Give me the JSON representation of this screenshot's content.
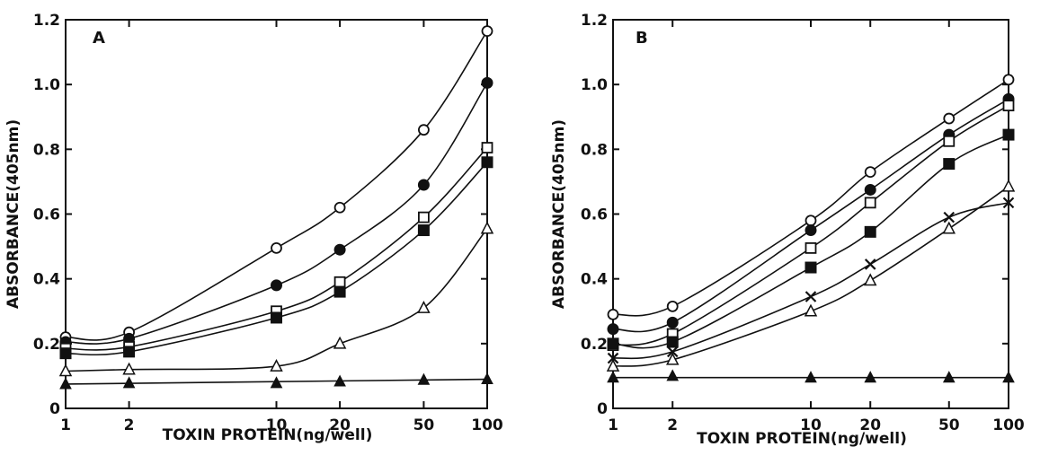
{
  "chart_data": [
    {
      "type": "line",
      "panel_label": "A",
      "xlabel": "TOXIN PROTEIN(ng/well)",
      "ylabel": "ABSORBANCE(405nm)",
      "x_scale": "log",
      "xlim": [
        1,
        100
      ],
      "ylim": [
        0,
        1.2
      ],
      "x_ticks": [
        1,
        2,
        10,
        20,
        50,
        100
      ],
      "x_tick_labels": [
        "1",
        "2",
        "10",
        "20",
        "50",
        "100"
      ],
      "y_ticks": [
        0,
        0.2,
        0.4,
        0.6,
        0.8,
        1.0,
        1.2
      ],
      "y_tick_labels": [
        "0",
        "0.2",
        "0.4",
        "0.6",
        "0.8",
        "1.0",
        "1.2"
      ],
      "series": [
        {
          "marker": "open-circle",
          "x": [
            1,
            2,
            10,
            20,
            50,
            100
          ],
          "y": [
            0.22,
            0.235,
            0.495,
            0.62,
            0.86,
            1.165
          ]
        },
        {
          "marker": "filled-circle",
          "x": [
            1,
            2,
            10,
            20,
            50,
            100
          ],
          "y": [
            0.205,
            0.215,
            0.38,
            0.49,
            0.69,
            1.005
          ]
        },
        {
          "marker": "open-square",
          "x": [
            1,
            2,
            10,
            20,
            50,
            100
          ],
          "y": [
            0.185,
            0.19,
            0.3,
            0.39,
            0.59,
            0.805
          ]
        },
        {
          "marker": "filled-square",
          "x": [
            1,
            2,
            10,
            20,
            50,
            100
          ],
          "y": [
            0.17,
            0.175,
            0.28,
            0.36,
            0.55,
            0.76
          ]
        },
        {
          "marker": "open-triangle",
          "x": [
            1,
            2,
            10,
            20,
            50,
            100
          ],
          "y": [
            0.115,
            0.12,
            0.13,
            0.2,
            0.31,
            0.555
          ]
        },
        {
          "marker": "filled-triangle",
          "x": [
            1,
            2,
            10,
            20,
            50,
            100
          ],
          "y": [
            0.075,
            0.078,
            0.078,
            0.083,
            0.088,
            0.09
          ]
        }
      ]
    },
    {
      "type": "line",
      "panel_label": "B",
      "xlabel": "TOXIN PROTEIN(ng/well)",
      "ylabel": "ABSORBANCE(405nm)",
      "x_scale": "log",
      "xlim": [
        1,
        100
      ],
      "ylim": [
        0,
        1.2
      ],
      "x_ticks": [
        1,
        2,
        10,
        20,
        50,
        100
      ],
      "x_tick_labels": [
        "1",
        "2",
        "10",
        "20",
        "50",
        "100"
      ],
      "y_ticks": [
        0,
        0.2,
        0.4,
        0.6,
        0.8,
        1.0,
        1.2
      ],
      "y_tick_labels": [
        "0",
        "0.2",
        "0.4",
        "0.6",
        "0.8",
        "1.0",
        "1.2"
      ],
      "series": [
        {
          "marker": "open-circle",
          "x": [
            1,
            2,
            10,
            20,
            50,
            100
          ],
          "y": [
            0.29,
            0.315,
            0.58,
            0.73,
            0.895,
            1.015
          ]
        },
        {
          "marker": "filled-circle",
          "x": [
            1,
            2,
            10,
            20,
            50,
            100
          ],
          "y": [
            0.245,
            0.265,
            0.55,
            0.675,
            0.845,
            0.955
          ]
        },
        {
          "marker": "open-square",
          "x": [
            1,
            2,
            10,
            20,
            50,
            100
          ],
          "y": [
            0.195,
            0.23,
            0.495,
            0.635,
            0.825,
            0.935
          ]
        },
        {
          "marker": "filled-square",
          "x": [
            1,
            2,
            10,
            20,
            50,
            100
          ],
          "y": [
            0.2,
            0.205,
            0.435,
            0.545,
            0.755,
            0.845
          ]
        },
        {
          "marker": "cross",
          "x": [
            1,
            2,
            10,
            20,
            50,
            100
          ],
          "y": [
            0.155,
            0.175,
            0.345,
            0.445,
            0.59,
            0.635
          ]
        },
        {
          "marker": "open-triangle",
          "x": [
            1,
            2,
            10,
            20,
            50,
            100
          ],
          "y": [
            0.13,
            0.15,
            0.3,
            0.395,
            0.555,
            0.685
          ]
        },
        {
          "marker": "filled-triangle",
          "x": [
            1,
            2,
            10,
            20,
            50,
            100
          ],
          "y": [
            0.095,
            0.1,
            0.095,
            0.095,
            0.095,
            0.095
          ]
        }
      ]
    }
  ]
}
